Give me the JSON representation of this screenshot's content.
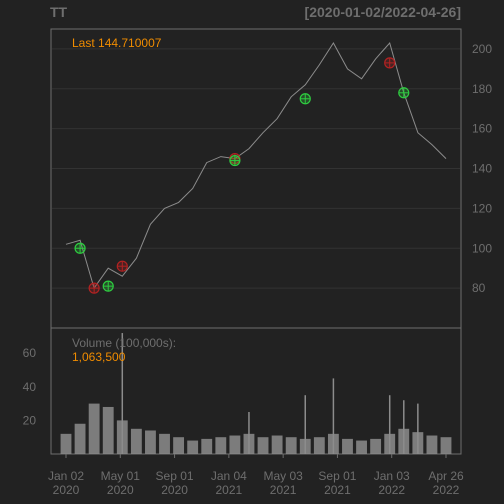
{
  "header": {
    "symbol": "TT",
    "date_range": "[2020-01-02/2022-04-26]"
  },
  "price_panel": {
    "last_label": "Last 144.710007",
    "last_color": "#f08c00"
  },
  "volume_panel": {
    "label": "Volume (100,000s):",
    "value": "1,063,500",
    "value_color": "#f08c00"
  },
  "colors": {
    "background": "#222222",
    "panel_border": "#6e6e6e",
    "grid": "#333333",
    "series": "#8c8c8c",
    "axis_text": "#6e6e6e",
    "buy_marker": "#2ecc40",
    "sell_marker": "#b22222"
  },
  "chart_data": [
    {
      "type": "line",
      "title": "",
      "xlabel": "",
      "ylabel": "",
      "ylim": [
        60,
        210
      ],
      "y_ticks": [
        80,
        100,
        120,
        140,
        160,
        180,
        200
      ],
      "x_tick_labels": [
        [
          "Jan 02",
          "2020"
        ],
        [
          "May 01",
          "2020"
        ],
        [
          "Sep 01",
          "2020"
        ],
        [
          "Jan 04",
          "2021"
        ],
        [
          "May 03",
          "2021"
        ],
        [
          "Sep 01",
          "2021"
        ],
        [
          "Jan 03",
          "2022"
        ],
        [
          "Apr 26",
          "2022"
        ]
      ],
      "x": [
        "2020-01",
        "2020-02",
        "2020-03",
        "2020-04",
        "2020-05",
        "2020-06",
        "2020-07",
        "2020-08",
        "2020-09",
        "2020-10",
        "2020-11",
        "2020-12",
        "2021-01",
        "2021-02",
        "2021-03",
        "2021-04",
        "2021-05",
        "2021-06",
        "2021-07",
        "2021-08",
        "2021-09",
        "2021-10",
        "2021-11",
        "2021-12",
        "2022-01",
        "2022-02",
        "2022-03",
        "2022-04"
      ],
      "y": [
        102,
        104,
        80,
        90,
        86,
        95,
        112,
        120,
        123,
        130,
        143,
        146,
        145,
        150,
        158,
        165,
        176,
        182,
        192,
        203,
        190,
        185,
        195,
        203,
        178,
        158,
        152,
        145
      ],
      "buy_signals": [
        {
          "date": "2020-02",
          "price": 100
        },
        {
          "date": "2020-04",
          "price": 81
        },
        {
          "date": "2021-01",
          "price": 144
        },
        {
          "date": "2021-06",
          "price": 175
        },
        {
          "date": "2022-01",
          "price": 178
        }
      ],
      "sell_signals": [
        {
          "date": "2020-03",
          "price": 80
        },
        {
          "date": "2020-05",
          "price": 91
        },
        {
          "date": "2021-01",
          "price": 145
        },
        {
          "date": "2021-12",
          "price": 193
        }
      ]
    },
    {
      "type": "bar",
      "title": "",
      "ylabel": "",
      "ylim": [
        0,
        75
      ],
      "y_ticks": [
        20,
        40,
        60
      ],
      "x": [
        "2020-01",
        "2020-02",
        "2020-03",
        "2020-04",
        "2020-05",
        "2020-06",
        "2020-07",
        "2020-08",
        "2020-09",
        "2020-10",
        "2020-11",
        "2020-12",
        "2021-01",
        "2021-02",
        "2021-03",
        "2021-04",
        "2021-05",
        "2021-06",
        "2021-07",
        "2021-08",
        "2021-09",
        "2021-10",
        "2021-11",
        "2021-12",
        "2022-01",
        "2022-02",
        "2022-03",
        "2022-04"
      ],
      "values": [
        12,
        18,
        30,
        28,
        20,
        15,
        14,
        12,
        10,
        8,
        9,
        10,
        11,
        12,
        10,
        11,
        10,
        9,
        10,
        12,
        9,
        8,
        9,
        12,
        15,
        13,
        11,
        10
      ],
      "spikes": [
        {
          "date": "2020-05",
          "value": 72
        },
        {
          "date": "2021-02",
          "value": 25
        },
        {
          "date": "2021-06",
          "value": 35
        },
        {
          "date": "2021-08",
          "value": 45
        },
        {
          "date": "2021-12",
          "value": 35
        },
        {
          "date": "2022-01",
          "value": 32
        },
        {
          "date": "2022-02",
          "value": 30
        }
      ]
    }
  ]
}
